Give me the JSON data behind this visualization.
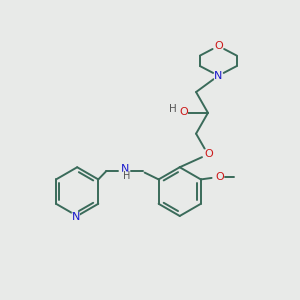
{
  "background_color": "#e8eae8",
  "bond_color": "#3a6b5a",
  "atom_colors": {
    "N": "#1a1acc",
    "O": "#cc1a1a",
    "H": "#555555",
    "C": "#3a6b5a"
  },
  "figsize": [
    3.0,
    3.0
  ],
  "dpi": 100
}
